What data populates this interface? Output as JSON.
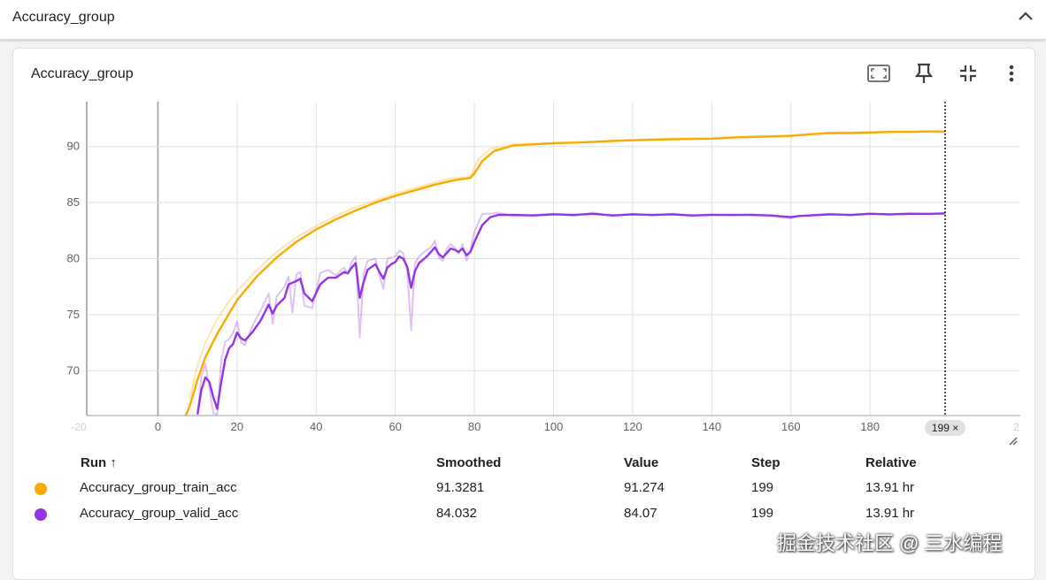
{
  "group": {
    "title": "Accuracy_group"
  },
  "card": {
    "title": "Accuracy_group"
  },
  "icons": {
    "collapse": "chevron-up-icon",
    "fit_domain": "fit-domain-icon",
    "pin": "pin-icon",
    "collapse_card": "collapse-card-icon",
    "more": "more-vert-icon",
    "resize": "resize-handle-icon"
  },
  "colors": {
    "train": "#f9ab00",
    "valid": "#9334e6",
    "grid": "#e0e0e0"
  },
  "chart_data": {
    "type": "line",
    "title": "Accuracy_group",
    "xlabel": "",
    "ylabel": "",
    "xlim": [
      -18,
      218
    ],
    "ylim": [
      66,
      94
    ],
    "x_ticks": [
      0,
      20,
      40,
      60,
      80,
      100,
      120,
      140,
      160,
      180
    ],
    "y_ticks": [
      70,
      75,
      80,
      85,
      90
    ],
    "x_tick_labels": [
      "0",
      "20",
      "40",
      "60",
      "80",
      "100",
      "120",
      "140",
      "160",
      "180"
    ],
    "y_tick_labels": [
      "70",
      "75",
      "80",
      "85",
      "90"
    ],
    "edge_tick_labels": [
      "-20",
      "2"
    ],
    "cursor_step": 199,
    "cursor_label": "199 ×",
    "series": [
      {
        "name": "Accuracy_group_train_acc",
        "color": "#f9ab00",
        "smoothed": [
          [
            7,
            66
          ],
          [
            8,
            66.8
          ],
          [
            10,
            69.2
          ],
          [
            12,
            71.2
          ],
          [
            15,
            73.3
          ],
          [
            18,
            75.1
          ],
          [
            20,
            76.3
          ],
          [
            25,
            78.4
          ],
          [
            30,
            80.1
          ],
          [
            35,
            81.5
          ],
          [
            40,
            82.6
          ],
          [
            45,
            83.5
          ],
          [
            50,
            84.3
          ],
          [
            55,
            85.0
          ],
          [
            60,
            85.6
          ],
          [
            65,
            86.1
          ],
          [
            70,
            86.6
          ],
          [
            75,
            87.0
          ],
          [
            79,
            87.2
          ],
          [
            80,
            87.6
          ],
          [
            82,
            88.7
          ],
          [
            85,
            89.6
          ],
          [
            88,
            89.9
          ],
          [
            90,
            90.1
          ],
          [
            95,
            90.2
          ],
          [
            100,
            90.3
          ],
          [
            105,
            90.35
          ],
          [
            110,
            90.4
          ],
          [
            115,
            90.5
          ],
          [
            120,
            90.55
          ],
          [
            125,
            90.6
          ],
          [
            130,
            90.65
          ],
          [
            140,
            90.7
          ],
          [
            145,
            90.8
          ],
          [
            150,
            90.85
          ],
          [
            155,
            90.9
          ],
          [
            160,
            90.95
          ],
          [
            165,
            91.1
          ],
          [
            170,
            91.2
          ],
          [
            175,
            91.2
          ],
          [
            180,
            91.25
          ],
          [
            185,
            91.3
          ],
          [
            190,
            91.3
          ],
          [
            195,
            91.35
          ],
          [
            199,
            91.33
          ]
        ],
        "raw": [
          [
            8,
            67.5
          ],
          [
            10,
            70.5
          ],
          [
            12,
            72.5
          ],
          [
            15,
            74.6
          ],
          [
            18,
            76.2
          ],
          [
            20,
            77.1
          ],
          [
            25,
            79.0
          ],
          [
            30,
            80.6
          ],
          [
            35,
            81.9
          ],
          [
            40,
            82.9
          ],
          [
            45,
            83.8
          ],
          [
            50,
            84.6
          ],
          [
            55,
            85.2
          ],
          [
            60,
            85.8
          ],
          [
            65,
            86.3
          ],
          [
            70,
            86.8
          ],
          [
            75,
            87.2
          ],
          [
            79,
            87.3
          ],
          [
            81,
            88.9
          ],
          [
            84,
            89.8
          ],
          [
            88,
            90.0
          ],
          [
            90,
            90.2
          ],
          [
            100,
            90.3
          ],
          [
            110,
            90.45
          ],
          [
            120,
            90.6
          ],
          [
            130,
            90.7
          ],
          [
            140,
            90.75
          ],
          [
            150,
            90.9
          ],
          [
            160,
            91.0
          ],
          [
            170,
            91.25
          ],
          [
            180,
            91.3
          ],
          [
            190,
            91.35
          ],
          [
            199,
            91.27
          ]
        ],
        "last_smoothed": "91.3281",
        "last_value": "91.274",
        "last_step": "199",
        "relative": "13.91 hr"
      },
      {
        "name": "Accuracy_group_valid_acc",
        "color": "#9334e6",
        "smoothed": [
          [
            10,
            66.1
          ],
          [
            11,
            68.3
          ],
          [
            12,
            69.4
          ],
          [
            13,
            69.0
          ],
          [
            14,
            67.6
          ],
          [
            15,
            66.6
          ],
          [
            16,
            69.0
          ],
          [
            17,
            71.0
          ],
          [
            18,
            72.0
          ],
          [
            19,
            72.4
          ],
          [
            20,
            73.4
          ],
          [
            21,
            72.9
          ],
          [
            22,
            72.7
          ],
          [
            24,
            73.5
          ],
          [
            26,
            74.5
          ],
          [
            28,
            75.9
          ],
          [
            29,
            75.1
          ],
          [
            30,
            75.8
          ],
          [
            32,
            76.5
          ],
          [
            33,
            77.7
          ],
          [
            35,
            78.0
          ],
          [
            36,
            78.2
          ],
          [
            37,
            76.9
          ],
          [
            39,
            76.2
          ],
          [
            41,
            77.7
          ],
          [
            43,
            78.3
          ],
          [
            45,
            78.3
          ],
          [
            47,
            78.8
          ],
          [
            48,
            78.7
          ],
          [
            49,
            79.2
          ],
          [
            50,
            79.6
          ],
          [
            51,
            76.5
          ],
          [
            52,
            77.9
          ],
          [
            53,
            79.0
          ],
          [
            55,
            79.5
          ],
          [
            56,
            78.8
          ],
          [
            57,
            78.2
          ],
          [
            58,
            79.2
          ],
          [
            59,
            79.5
          ],
          [
            60,
            79.7
          ],
          [
            61,
            80.2
          ],
          [
            62,
            80.0
          ],
          [
            63,
            79.3
          ],
          [
            64,
            77.4
          ],
          [
            65,
            78.9
          ],
          [
            66,
            79.6
          ],
          [
            68,
            80.2
          ],
          [
            69,
            80.6
          ],
          [
            70,
            81.0
          ],
          [
            71,
            80.4
          ],
          [
            72,
            80.1
          ],
          [
            73,
            80.5
          ],
          [
            74,
            80.9
          ],
          [
            75,
            80.8
          ],
          [
            76,
            80.6
          ],
          [
            77,
            80.9
          ],
          [
            78,
            80.3
          ],
          [
            79,
            80.6
          ],
          [
            80,
            81.5
          ],
          [
            82,
            83.0
          ],
          [
            84,
            83.7
          ],
          [
            86,
            83.9
          ],
          [
            90,
            83.9
          ],
          [
            95,
            83.85
          ],
          [
            100,
            83.95
          ],
          [
            105,
            83.9
          ],
          [
            110,
            84.0
          ],
          [
            115,
            83.85
          ],
          [
            120,
            83.95
          ],
          [
            125,
            83.9
          ],
          [
            130,
            83.95
          ],
          [
            135,
            83.85
          ],
          [
            140,
            83.9
          ],
          [
            145,
            83.9
          ],
          [
            150,
            83.9
          ],
          [
            155,
            83.85
          ],
          [
            160,
            83.7
          ],
          [
            162,
            83.8
          ],
          [
            170,
            83.95
          ],
          [
            175,
            83.9
          ],
          [
            180,
            84.0
          ],
          [
            185,
            83.95
          ],
          [
            190,
            84.0
          ],
          [
            195,
            84.0
          ],
          [
            199,
            84.03
          ]
        ],
        "raw": [
          [
            10,
            66.3
          ],
          [
            11,
            69.5
          ],
          [
            12,
            70.6
          ],
          [
            13,
            68.4
          ],
          [
            14,
            66.2
          ],
          [
            15,
            66.1
          ],
          [
            16,
            71.0
          ],
          [
            17,
            72.6
          ],
          [
            18,
            72.8
          ],
          [
            19,
            73.4
          ],
          [
            20,
            74.4
          ],
          [
            21,
            72.5
          ],
          [
            22,
            72.3
          ],
          [
            24,
            74.1
          ],
          [
            26,
            75.4
          ],
          [
            28,
            76.9
          ],
          [
            29,
            74.2
          ],
          [
            30,
            76.6
          ],
          [
            32,
            77.5
          ],
          [
            33,
            78.4
          ],
          [
            34,
            75.2
          ],
          [
            35,
            78.6
          ],
          [
            36,
            78.8
          ],
          [
            37,
            75.8
          ],
          [
            39,
            75.6
          ],
          [
            41,
            78.7
          ],
          [
            43,
            79.0
          ],
          [
            45,
            78.5
          ],
          [
            47,
            79.2
          ],
          [
            48,
            78.6
          ],
          [
            49,
            79.7
          ],
          [
            50,
            80.2
          ],
          [
            51,
            73.0
          ],
          [
            52,
            78.6
          ],
          [
            53,
            79.8
          ],
          [
            55,
            80.0
          ],
          [
            56,
            78.5
          ],
          [
            57,
            77.3
          ],
          [
            58,
            80.0
          ],
          [
            59,
            80.1
          ],
          [
            60,
            80.2
          ],
          [
            61,
            80.7
          ],
          [
            62,
            80.5
          ],
          [
            63,
            79.0
          ],
          [
            64,
            73.6
          ],
          [
            65,
            79.6
          ],
          [
            66,
            80.2
          ],
          [
            68,
            80.8
          ],
          [
            69,
            81.0
          ],
          [
            70,
            81.6
          ],
          [
            71,
            80.1
          ],
          [
            72,
            79.8
          ],
          [
            73,
            80.9
          ],
          [
            74,
            81.3
          ],
          [
            75,
            81.0
          ],
          [
            76,
            80.4
          ],
          [
            77,
            81.3
          ],
          [
            78,
            79.8
          ],
          [
            79,
            80.8
          ],
          [
            80,
            82.4
          ],
          [
            82,
            84.0
          ],
          [
            84,
            84.0
          ],
          [
            86,
            84.1
          ],
          [
            90,
            83.8
          ],
          [
            95,
            83.9
          ],
          [
            100,
            84.0
          ],
          [
            105,
            83.8
          ],
          [
            110,
            84.1
          ],
          [
            115,
            83.8
          ],
          [
            120,
            84.0
          ],
          [
            125,
            83.85
          ],
          [
            130,
            84.0
          ],
          [
            135,
            83.8
          ],
          [
            140,
            83.95
          ],
          [
            145,
            83.85
          ],
          [
            150,
            83.95
          ],
          [
            155,
            83.8
          ],
          [
            160,
            83.6
          ],
          [
            162,
            83.8
          ],
          [
            170,
            84.0
          ],
          [
            175,
            83.85
          ],
          [
            180,
            84.05
          ],
          [
            185,
            83.9
          ],
          [
            190,
            84.05
          ],
          [
            195,
            83.95
          ],
          [
            199,
            84.07
          ]
        ],
        "last_smoothed": "84.032",
        "last_value": "84.07",
        "last_step": "199",
        "relative": "13.91 hr"
      }
    ]
  },
  "table": {
    "headers": {
      "run": "Run ↑",
      "smoothed": "Smoothed",
      "value": "Value",
      "step": "Step",
      "relative": "Relative"
    }
  },
  "watermark": "掘金技术社区 @ 三水编程"
}
